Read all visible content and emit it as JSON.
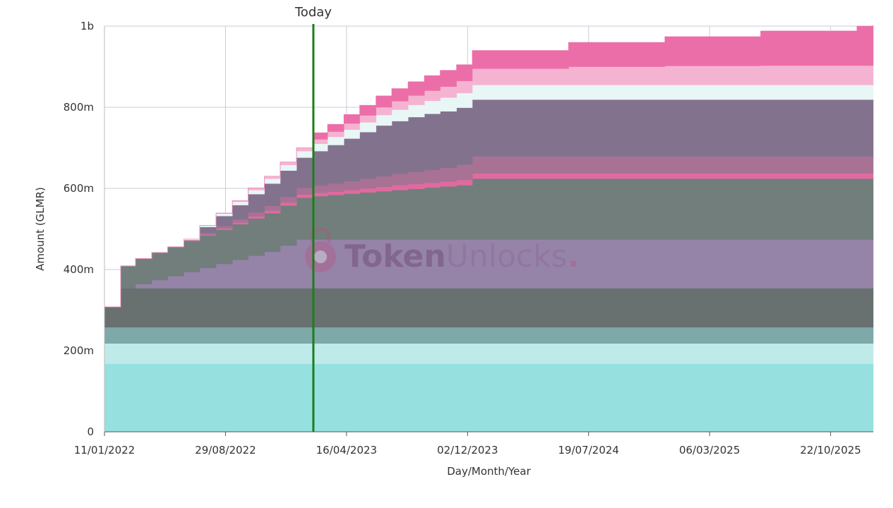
{
  "chart_data": {
    "type": "area",
    "stacked": true,
    "stepped": true,
    "xlabel": "Day/Month/Year",
    "ylabel": "Amount (GLMR)",
    "x_tick_labels": [
      "11/01/2022",
      "29/08/2022",
      "16/04/2023",
      "02/12/2023",
      "19/07/2024",
      "06/03/2025",
      "22/10/2025"
    ],
    "x_ticks": [
      "2022-01-11",
      "2022-08-29",
      "2023-04-16",
      "2023-12-02",
      "2024-07-19",
      "2025-03-06",
      "2025-10-22"
    ],
    "y_tick_labels": [
      "0",
      "200m",
      "400m",
      "600m",
      "800m",
      "1b"
    ],
    "y_ticks": [
      0,
      200000000,
      400000000,
      600000000,
      800000000,
      1000000000
    ],
    "xlim": [
      "2022-01-11",
      "2026-01-11"
    ],
    "ylim": [
      0,
      1000000000
    ],
    "grid": true,
    "today": {
      "label": "Today",
      "date": "2023-02-12",
      "color": "#1a7f1a"
    },
    "watermark": {
      "prefix": "Token",
      "suffix": "Unlocks",
      "dot": "."
    },
    "dates": [
      "2022-01-11",
      "2022-02-11",
      "2022-03-11",
      "2022-04-11",
      "2022-05-11",
      "2022-06-11",
      "2022-07-11",
      "2022-08-11",
      "2022-09-11",
      "2022-10-11",
      "2022-11-11",
      "2022-12-11",
      "2023-01-11",
      "2023-02-11",
      "2023-03-11",
      "2023-04-11",
      "2023-05-11",
      "2023-06-11",
      "2023-07-11",
      "2023-08-11",
      "2023-09-11",
      "2023-10-11",
      "2023-11-11",
      "2023-12-11",
      "2024-06-11",
      "2024-12-11",
      "2025-06-11",
      "2025-12-11",
      "2026-01-11"
    ],
    "series": [
      {
        "color": "#96e0df",
        "values": [
          168000000,
          168000000,
          168000000,
          168000000,
          168000000,
          168000000,
          168000000,
          168000000,
          168000000,
          168000000,
          168000000,
          168000000,
          168000000,
          168000000,
          168000000,
          168000000,
          168000000,
          168000000,
          168000000,
          168000000,
          168000000,
          168000000,
          168000000,
          168000000,
          168000000,
          168000000,
          168000000,
          168000000,
          168000000
        ]
      },
      {
        "color": "#bfeaea",
        "values": [
          50000000,
          50000000,
          50000000,
          50000000,
          50000000,
          50000000,
          50000000,
          50000000,
          50000000,
          50000000,
          50000000,
          50000000,
          50000000,
          50000000,
          50000000,
          50000000,
          50000000,
          50000000,
          50000000,
          50000000,
          50000000,
          50000000,
          50000000,
          50000000,
          50000000,
          50000000,
          50000000,
          50000000,
          50000000
        ]
      },
      {
        "color": "#7fa8a8",
        "values": [
          40000000,
          40000000,
          40000000,
          40000000,
          40000000,
          40000000,
          40000000,
          40000000,
          40000000,
          40000000,
          40000000,
          40000000,
          40000000,
          40000000,
          40000000,
          40000000,
          40000000,
          40000000,
          40000000,
          40000000,
          40000000,
          40000000,
          40000000,
          40000000,
          40000000,
          40000000,
          40000000,
          40000000,
          40000000
        ]
      },
      {
        "color": "#687070",
        "values": [
          50000000,
          96000000,
          96000000,
          96000000,
          96000000,
          96000000,
          96000000,
          96000000,
          96000000,
          96000000,
          96000000,
          96000000,
          96000000,
          96000000,
          96000000,
          96000000,
          96000000,
          96000000,
          96000000,
          96000000,
          96000000,
          96000000,
          96000000,
          96000000,
          96000000,
          96000000,
          96000000,
          96000000,
          96000000
        ]
      },
      {
        "color": "#9584a8",
        "values": [
          0,
          0,
          10000000,
          20000000,
          30000000,
          40000000,
          50000000,
          60000000,
          70000000,
          80000000,
          90000000,
          105000000,
          120000000,
          120000000,
          120000000,
          120000000,
          120000000,
          120000000,
          120000000,
          120000000,
          120000000,
          120000000,
          120000000,
          120000000,
          120000000,
          120000000,
          120000000,
          120000000,
          120000000
        ]
      },
      {
        "color": "#717e7c",
        "values": [
          0,
          55000000,
          63000000,
          68000000,
          72000000,
          76000000,
          80000000,
          84000000,
          88000000,
          92000000,
          95000000,
          99000000,
          103000000,
          107000000,
          110000000,
          113000000,
          116000000,
          119000000,
          122000000,
          125000000,
          128000000,
          131000000,
          134000000,
          150000000,
          150000000,
          150000000,
          150000000,
          150000000,
          150000000
        ]
      },
      {
        "color": "#df6b9e",
        "values": [
          0,
          0,
          0,
          0,
          0,
          1000000,
          2000000,
          3000000,
          4000000,
          5000000,
          6000000,
          7000000,
          8000000,
          8000000,
          8000000,
          9000000,
          10000000,
          11000000,
          12000000,
          12000000,
          12000000,
          12000000,
          13000000,
          13000000,
          13000000,
          13000000,
          13000000,
          13000000,
          13000000
        ]
      },
      {
        "color": "#a87294",
        "values": [
          0,
          0,
          0,
          0,
          0,
          2000000,
          4000000,
          6000000,
          8000000,
          10000000,
          12000000,
          14000000,
          16000000,
          18000000,
          20000000,
          22000000,
          24000000,
          26000000,
          28000000,
          30000000,
          32000000,
          34000000,
          38000000,
          42000000,
          42000000,
          42000000,
          42000000,
          42000000,
          42000000
        ]
      },
      {
        "color": "#83728d",
        "values": [
          0,
          0,
          0,
          0,
          0,
          0,
          15000000,
          25000000,
          35000000,
          45000000,
          55000000,
          65000000,
          75000000,
          85000000,
          95000000,
          105000000,
          115000000,
          125000000,
          130000000,
          135000000,
          138000000,
          139000000,
          140000000,
          140000000,
          140000000,
          140000000,
          140000000,
          140000000,
          140000000
        ]
      },
      {
        "color": "#e8f6f6",
        "values": [
          0,
          0,
          0,
          0,
          0,
          2000000,
          4000000,
          6000000,
          8000000,
          10000000,
          12000000,
          14000000,
          16000000,
          18000000,
          20000000,
          22000000,
          24000000,
          26000000,
          28000000,
          30000000,
          32000000,
          34000000,
          36000000,
          36000000,
          36000000,
          36000000,
          36000000,
          36000000,
          36000000
        ]
      },
      {
        "color": "#f5b3d2",
        "values": [
          0,
          0,
          0,
          0,
          0,
          0,
          0,
          1000000,
          3000000,
          5000000,
          6000000,
          7000000,
          8000000,
          11000000,
          13000000,
          15000000,
          17000000,
          19000000,
          21000000,
          23000000,
          25000000,
          27000000,
          30000000,
          40000000,
          45000000,
          47000000,
          48000000,
          48000000,
          48000000
        ]
      },
      {
        "color": "#ec6ea8",
        "values": [
          0,
          0,
          0,
          0,
          0,
          0,
          0,
          0,
          0,
          0,
          0,
          0,
          0,
          16000000,
          18000000,
          22000000,
          25000000,
          28000000,
          31000000,
          34000000,
          37000000,
          40000000,
          40000000,
          45000000,
          60000000,
          72000000,
          85000000,
          97000000,
          100000000
        ]
      }
    ]
  }
}
